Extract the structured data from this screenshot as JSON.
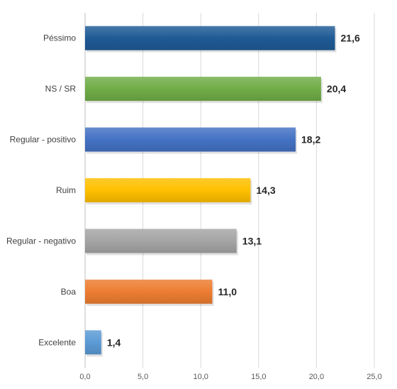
{
  "chart_data": {
    "type": "bar",
    "orientation": "horizontal",
    "categories": [
      "Péssimo",
      "NS / SR",
      "Regular - positivo",
      "Ruim",
      "Regular - negativo",
      "Boa",
      "Excelente"
    ],
    "values": [
      21.6,
      20.4,
      18.2,
      14.3,
      13.1,
      11.0,
      1.4
    ],
    "value_labels": [
      "21,6",
      "20,4",
      "18,2",
      "14,3",
      "13,1",
      "11,0",
      "1,4"
    ],
    "colors": [
      "#1f5b96",
      "#70ad47",
      "#4472c4",
      "#ffc000",
      "#a5a5a5",
      "#ed7d31",
      "#5b9bd5"
    ],
    "xlim": [
      0,
      25
    ],
    "ticks": [
      0,
      5,
      10,
      15,
      20,
      25
    ],
    "tick_labels": [
      "0,0",
      "5,0",
      "10,0",
      "15,0",
      "20,0",
      "25,0"
    ],
    "grid": true,
    "legend": "none",
    "title": "",
    "xlabel": "",
    "ylabel": ""
  }
}
